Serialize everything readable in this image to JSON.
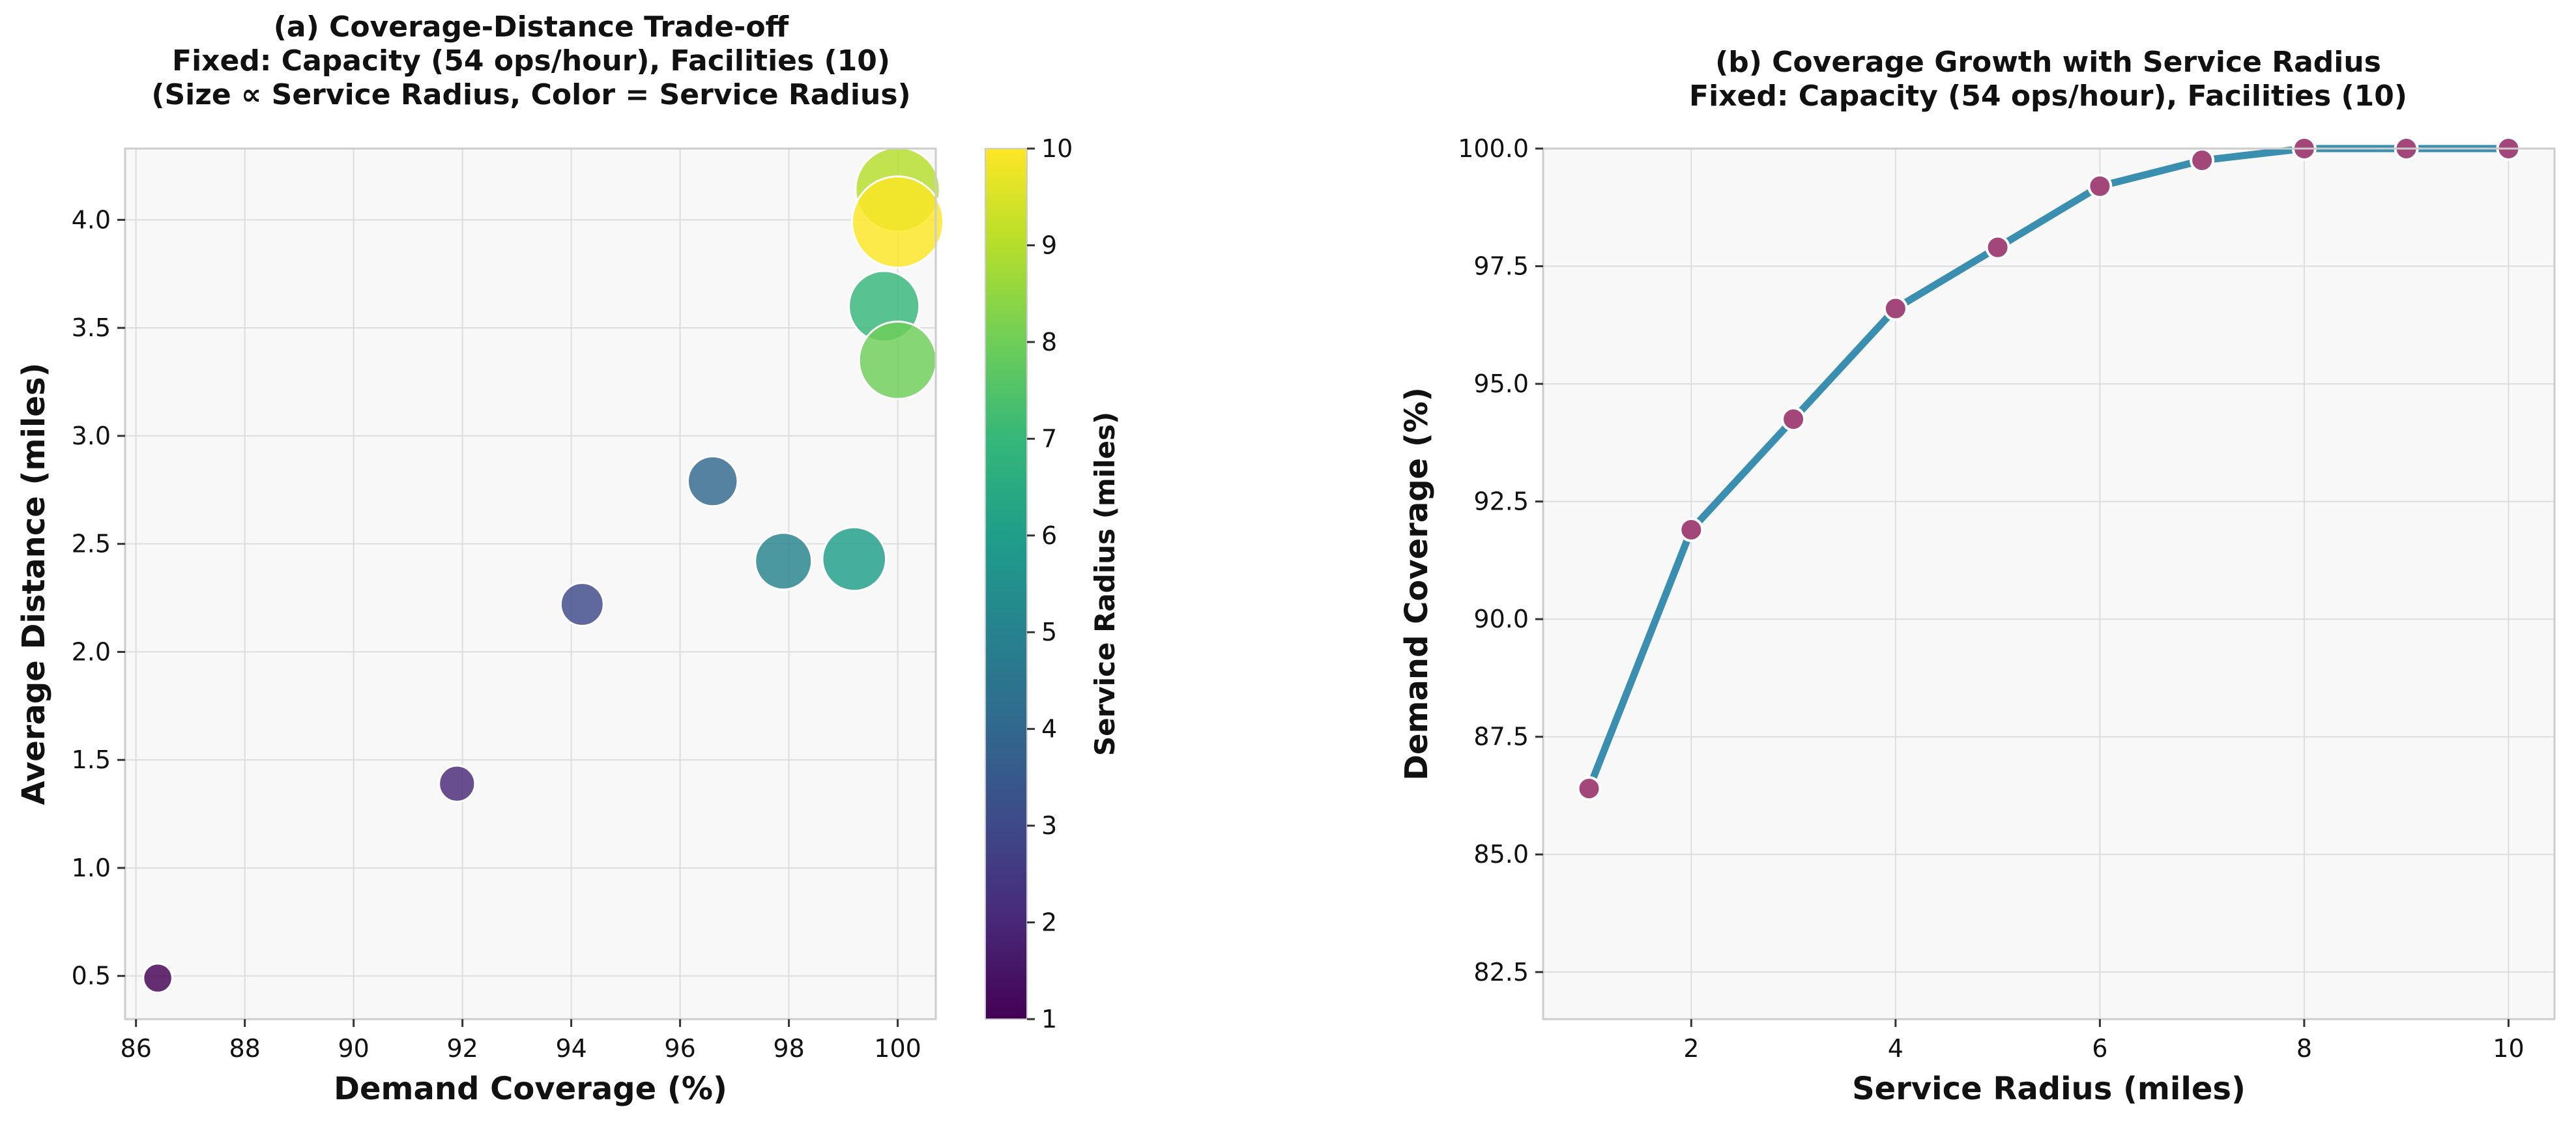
{
  "colors": {
    "line": "#3a8fb0",
    "marker": "#a3477a",
    "plot_bg": "#f8f8f8",
    "viridis": [
      "#440154",
      "#482878",
      "#3e4989",
      "#31688e",
      "#26828e",
      "#1f9e89",
      "#35b779",
      "#6ece58",
      "#b5de2b",
      "#fde725"
    ]
  },
  "chart_data": [
    {
      "type": "scatter",
      "title": [
        "(a) Coverage-Distance Trade-off",
        "Fixed: Capacity (54 ops/hour), Facilities (10)",
        "(Size ∝ Service Radius, Color = Service Radius)"
      ],
      "xlabel": "Demand Coverage (%)",
      "ylabel": "Average Distance (miles)",
      "xlim": [
        85.8,
        100.7
      ],
      "ylim": [
        0.3,
        4.33
      ],
      "xticks": [
        86,
        88,
        90,
        92,
        94,
        96,
        98,
        100
      ],
      "xtick_labels": [
        "86",
        "88",
        "90",
        "92",
        "94",
        "96",
        "98",
        "100"
      ],
      "yticks": [
        0.5,
        1.0,
        1.5,
        2.0,
        2.5,
        3.0,
        3.5,
        4.0
      ],
      "ytick_labels": [
        "0.5",
        "1.0",
        "1.5",
        "2.0",
        "2.5",
        "3.0",
        "3.5",
        "4.0"
      ],
      "grid": true,
      "points": [
        {
          "x": 86.4,
          "y": 0.49,
          "radius": 1
        },
        {
          "x": 91.9,
          "y": 1.39,
          "radius": 2
        },
        {
          "x": 94.2,
          "y": 2.22,
          "radius": 3
        },
        {
          "x": 96.6,
          "y": 2.79,
          "radius": 4
        },
        {
          "x": 97.9,
          "y": 2.42,
          "radius": 5
        },
        {
          "x": 99.2,
          "y": 2.43,
          "radius": 6
        },
        {
          "x": 99.75,
          "y": 3.6,
          "radius": 7
        },
        {
          "x": 100.0,
          "y": 3.35,
          "radius": 8
        },
        {
          "x": 100.0,
          "y": 4.14,
          "radius": 9
        },
        {
          "x": 100.0,
          "y": 3.99,
          "radius": 10
        }
      ],
      "colorbar": {
        "label": "Service Radius (miles)",
        "min": 1,
        "max": 10,
        "ticks": [
          1,
          2,
          3,
          4,
          5,
          6,
          7,
          8,
          9,
          10
        ],
        "tick_labels": [
          "1",
          "2",
          "3",
          "4",
          "5",
          "6",
          "7",
          "8",
          "9",
          "10"
        ]
      }
    },
    {
      "type": "line",
      "title": [
        "(b) Coverage Growth with Service Radius",
        "Fixed: Capacity (54 ops/hour), Facilities (10)"
      ],
      "xlabel": "Service Radius (miles)",
      "ylabel": "Demand Coverage (%)",
      "xlim": [
        0.55,
        10.45
      ],
      "ylim": [
        81.5,
        100.0
      ],
      "xticks": [
        2,
        4,
        6,
        8,
        10
      ],
      "xtick_labels": [
        "2",
        "4",
        "6",
        "8",
        "10"
      ],
      "yticks": [
        82.5,
        85.0,
        87.5,
        90.0,
        92.5,
        95.0,
        97.5,
        100.0
      ],
      "ytick_labels": [
        "82.5",
        "85.0",
        "87.5",
        "90.0",
        "92.5",
        "95.0",
        "97.5",
        "100.0"
      ],
      "grid": true,
      "x": [
        1,
        2,
        3,
        4,
        5,
        6,
        7,
        8,
        9,
        10
      ],
      "y": [
        86.4,
        91.9,
        94.25,
        96.6,
        97.9,
        99.2,
        99.75,
        100.0,
        100.0,
        100.0
      ]
    }
  ]
}
